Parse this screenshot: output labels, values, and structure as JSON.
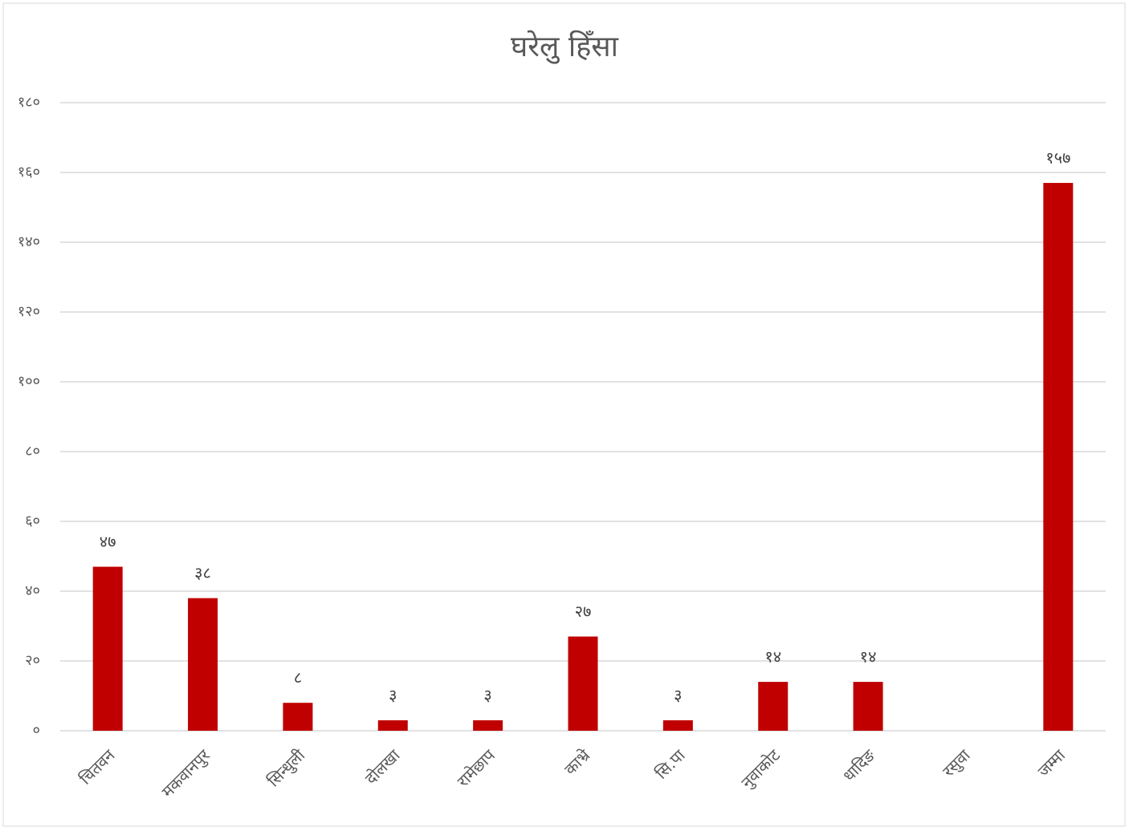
{
  "chart_data": {
    "type": "bar",
    "title": "घरेलु हिँसा",
    "categories": [
      "चितवन",
      "मकवानपुर",
      "सिन्धुली",
      "दोलखा",
      "रामेछाप",
      "काभ्रे",
      "सि.पा",
      "नुवाकोट",
      "धादिङ",
      "रसुवा",
      "जम्मा"
    ],
    "values": [
      47,
      38,
      8,
      3,
      3,
      27,
      3,
      14,
      14,
      null,
      157
    ],
    "value_labels": [
      "४७",
      "३८",
      "८",
      "३",
      "३",
      "२७",
      "३",
      "१४",
      "१४",
      null,
      "१५७"
    ],
    "color": "#c00000",
    "ylim": [
      0,
      180
    ],
    "yticks": [
      {
        "value": 0,
        "label": "०"
      },
      {
        "value": 20,
        "label": "२०"
      },
      {
        "value": 40,
        "label": "४०"
      },
      {
        "value": 60,
        "label": "६०"
      },
      {
        "value": 80,
        "label": "८०"
      },
      {
        "value": 100,
        "label": "१००"
      },
      {
        "value": 120,
        "label": "१२०"
      },
      {
        "value": 140,
        "label": "१४०"
      },
      {
        "value": 160,
        "label": "१६०"
      },
      {
        "value": 180,
        "label": "१८०"
      }
    ],
    "grid": true
  }
}
